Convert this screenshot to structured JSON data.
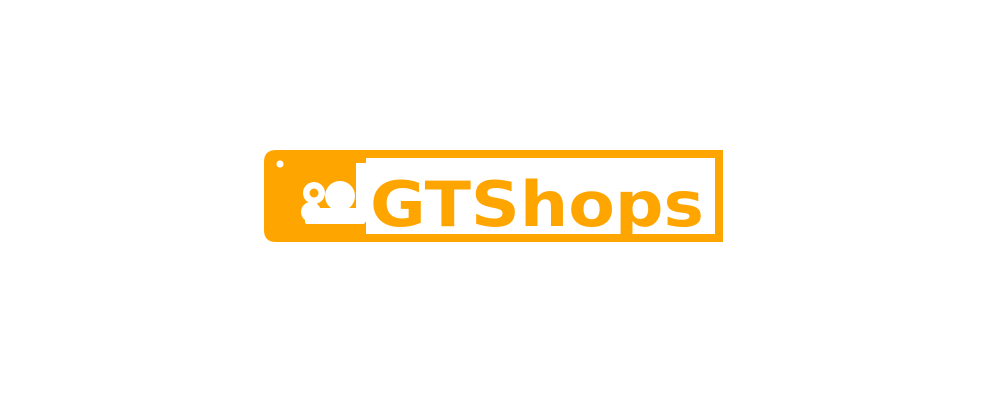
{
  "logo": {
    "brand_name": "GTShops",
    "icon": "cloud-shop-tag-icon",
    "accent_color": "#FFA500",
    "background_color": "#FFFFFF"
  }
}
